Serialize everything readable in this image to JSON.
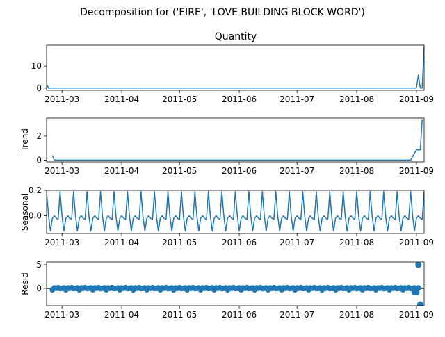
{
  "chart_data": {
    "type": "line",
    "title": "Decomposition for ('EIRE', 'LOVE BUILDING BLOCK WORD')",
    "x_tick_labels": [
      "2011-03",
      "2011-04",
      "2011-05",
      "2011-06",
      "2011-07",
      "2011-08",
      "2011-09"
    ],
    "xlim": [
      "2011-02-21",
      "2011-09-05"
    ],
    "panels": [
      {
        "id": "quantity",
        "subtitle": "Quantity",
        "ylabel": "",
        "type": "line",
        "ylim": [
          -1,
          19.5
        ],
        "yticks": [
          {
            "value": 0,
            "label": "0"
          },
          {
            "value": 10,
            "label": "10"
          }
        ],
        "series": [
          {
            "x": "2011-02-21",
            "y": 2
          },
          {
            "x": "2011-02-22",
            "y": 0
          },
          {
            "x": "2011-09-01",
            "y": 0
          },
          {
            "x": "2011-09-02",
            "y": 6
          },
          {
            "x": "2011-09-03",
            "y": 0
          },
          {
            "x": "2011-09-04",
            "y": 0
          },
          {
            "x": "2011-09-05",
            "y": 19
          }
        ]
      },
      {
        "id": "trend",
        "subtitle": "",
        "ylabel": "Trend",
        "type": "line",
        "ylim": [
          -0.15,
          3.5
        ],
        "yticks": [
          {
            "value": 0,
            "label": "0"
          },
          {
            "value": 2,
            "label": "2"
          }
        ],
        "series": [
          {
            "x": "2011-02-24",
            "y": 0.4
          },
          {
            "x": "2011-02-25",
            "y": 0
          },
          {
            "x": "2011-08-29",
            "y": 0
          },
          {
            "x": "2011-09-01",
            "y": 0.85
          },
          {
            "x": "2011-09-03",
            "y": 0.85
          },
          {
            "x": "2011-09-04",
            "y": 3.4
          }
        ]
      },
      {
        "id": "seasonal",
        "subtitle": "",
        "ylabel": "Seasonal",
        "type": "line",
        "ylim": [
          -0.14,
          0.2
        ],
        "yticks": [
          {
            "value": 0.0,
            "label": "0.0"
          },
          {
            "value": 0.2,
            "label": "0.2"
          }
        ],
        "start": "2011-02-21",
        "end": "2011-09-05",
        "period_pattern": [
          0.19,
          0.0,
          -0.12,
          -0.02,
          0.0,
          -0.02,
          -0.03
        ]
      },
      {
        "id": "resid",
        "subtitle": "",
        "ylabel": "Resid",
        "type": "scatter",
        "ylim": [
          -3.7,
          5.6
        ],
        "yticks": [
          {
            "value": 0,
            "label": "0"
          },
          {
            "value": 5,
            "label": "5"
          }
        ],
        "zero_line": true,
        "start": "2011-02-24",
        "end": "2011-09-02",
        "noise_pattern": [
          -0.3,
          0.1,
          0.0,
          0.15,
          -0.05,
          0.0,
          0.1
        ],
        "outliers": [
          {
            "x": "2011-08-31",
            "y": -0.8
          },
          {
            "x": "2011-09-01",
            "y": -0.8
          },
          {
            "x": "2011-09-02",
            "y": 5.0
          },
          {
            "x": "2011-09-03",
            "y": -3.4
          }
        ]
      }
    ]
  }
}
